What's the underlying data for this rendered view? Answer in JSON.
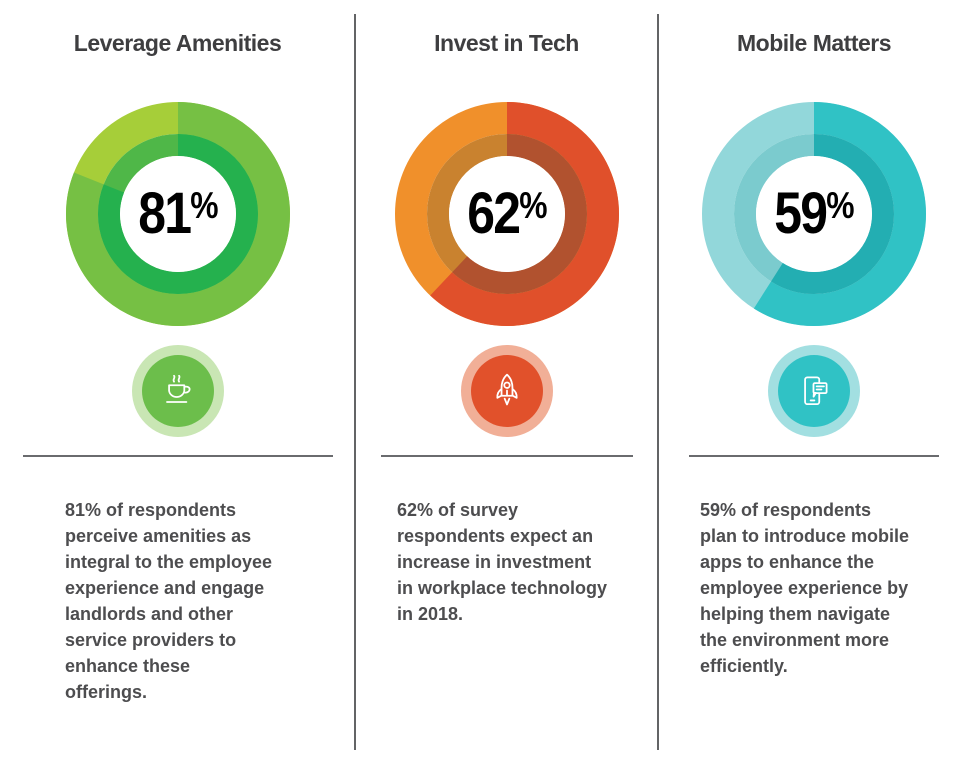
{
  "colors": {
    "background": "#ffffff",
    "divider": "#636466",
    "rule": "#6a6b6e",
    "title_text": "#3e3e40",
    "body_text": "#4d4d4f",
    "percent_text": "#000000"
  },
  "chart_data": [
    {
      "type": "pie",
      "variant": "donut",
      "title": "Leverage Amenities",
      "labels": [
        "agree",
        "remainder"
      ],
      "values": [
        81,
        19
      ],
      "unit": "%",
      "center_label": "81%",
      "start_angle_deg": 0,
      "direction": "clockwise",
      "legend": "none",
      "colors": {
        "ring_main": "#76c044",
        "ring_rest": "#a6ce39",
        "inner_ring_main": "#25b14e",
        "inner_ring_rest": "#4fb748"
      }
    },
    {
      "type": "pie",
      "variant": "donut",
      "title": "Invest in Tech",
      "labels": [
        "agree",
        "remainder"
      ],
      "values": [
        62,
        38
      ],
      "unit": "%",
      "center_label": "62%",
      "start_angle_deg": 0,
      "direction": "clockwise",
      "legend": "none",
      "colors": {
        "ring_main": "#e0502b",
        "ring_rest": "#f0902b",
        "inner_ring_main": "#b1522f",
        "inner_ring_rest": "#c9822f"
      }
    },
    {
      "type": "pie",
      "variant": "donut",
      "title": "Mobile Matters",
      "labels": [
        "agree",
        "remainder"
      ],
      "values": [
        59,
        41
      ],
      "unit": "%",
      "center_label": "59%",
      "start_angle_deg": 0,
      "direction": "clockwise",
      "legend": "none",
      "colors": {
        "ring_main": "#30c2c5",
        "ring_rest": "#92d7da",
        "inner_ring_main": "#23aeb2",
        "inner_ring_rest": "#7bcbce"
      }
    }
  ],
  "columns": [
    {
      "title": "Leverage Amenities",
      "value": "81",
      "unit": "%",
      "icon": "coffee-cup-icon",
      "icon_colors": {
        "bg": "#6cbe4b",
        "ring": "#c9e6b4"
      },
      "description": "81% of respondents\nperceive amenities as\nintegral to the employee\nexperience and engage\nlandlords and other\nservice providers to\nenhance these\nofferings."
    },
    {
      "title": "Invest in Tech",
      "value": "62",
      "unit": "%",
      "icon": "rocket-icon",
      "icon_colors": {
        "bg": "#e1512b",
        "ring": "#f1af97"
      },
      "description": "62% of survey\nrespondents expect an\nincrease in investment\nin workplace technology\nin 2018."
    },
    {
      "title": "Mobile Matters",
      "value": "59",
      "unit": "%",
      "icon": "mobile-chat-icon",
      "icon_colors": {
        "bg": "#30c2c5",
        "ring": "#a2dfe1"
      },
      "description": "59% of respondents\nplan to introduce mobile\napps to enhance the\nemployee experience by\nhelping them navigate\nthe environment more\nefficiently."
    }
  ]
}
